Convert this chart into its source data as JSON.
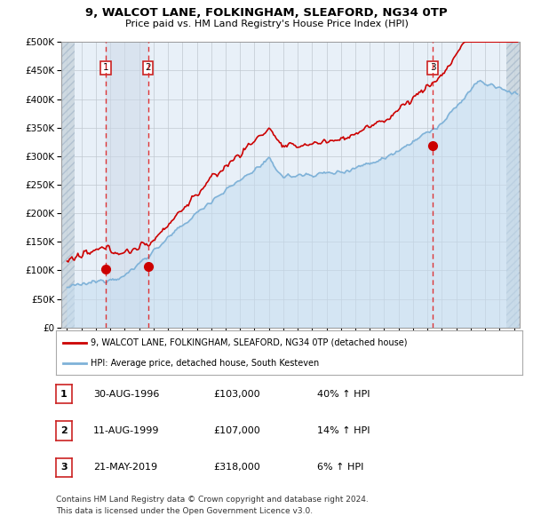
{
  "title": "9, WALCOT LANE, FOLKINGHAM, SLEAFORD, NG34 0TP",
  "subtitle": "Price paid vs. HM Land Registry's House Price Index (HPI)",
  "ylim": [
    0,
    500000
  ],
  "yticks": [
    0,
    50000,
    100000,
    150000,
    200000,
    250000,
    300000,
    350000,
    400000,
    450000,
    500000
  ],
  "ytick_labels": [
    "£0",
    "£50K",
    "£100K",
    "£150K",
    "£200K",
    "£250K",
    "£300K",
    "£350K",
    "£400K",
    "£450K",
    "£500K"
  ],
  "xlim_start": 1993.6,
  "xlim_end": 2025.4,
  "transactions": [
    {
      "date": 1996.66,
      "price": 103000,
      "label": "1"
    },
    {
      "date": 1999.61,
      "price": 107000,
      "label": "2"
    },
    {
      "date": 2019.38,
      "price": 318000,
      "label": "3"
    }
  ],
  "legend_line1": "9, WALCOT LANE, FOLKINGHAM, SLEAFORD, NG34 0TP (detached house)",
  "legend_line2": "HPI: Average price, detached house, South Kesteven",
  "table_rows": [
    {
      "label": "1",
      "date": "30-AUG-1996",
      "price": "£103,000",
      "hpi": "40% ↑ HPI"
    },
    {
      "label": "2",
      "date": "11-AUG-1999",
      "price": "£107,000",
      "hpi": "14% ↑ HPI"
    },
    {
      "label": "3",
      "date": "21-MAY-2019",
      "price": "£318,000",
      "hpi": "6% ↑ HPI"
    }
  ],
  "footer_line1": "Contains HM Land Registry data © Crown copyright and database right 2024.",
  "footer_line2": "This data is licensed under the Open Government Licence v3.0.",
  "property_color": "#cc0000",
  "hpi_color": "#7fb2d8",
  "hpi_fill_color": "#c5ddf0",
  "plot_bg_color": "#e8f0f8",
  "hatch_region_color": "#d0d8e0"
}
